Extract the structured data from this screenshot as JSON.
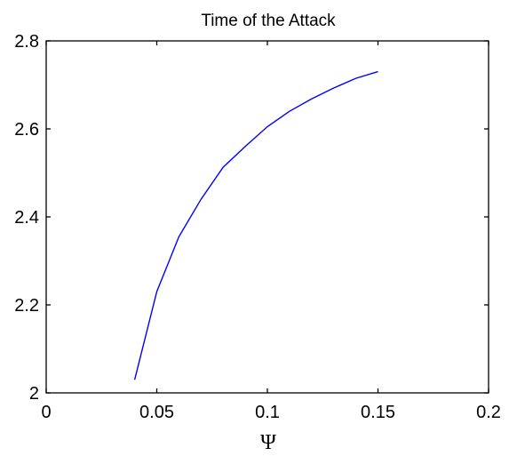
{
  "chart_data": {
    "type": "line",
    "title": "Time of the Attack",
    "xlabel": "Ψ",
    "ylabel": "",
    "xlim": [
      0,
      0.2
    ],
    "ylim": [
      2,
      2.8
    ],
    "xticks": [
      0,
      0.05,
      0.1,
      0.15,
      0.2
    ],
    "xtick_labels": [
      "0",
      "0.05",
      "0.1",
      "0.15",
      "0.2"
    ],
    "yticks": [
      2,
      2.2,
      2.4,
      2.6,
      2.8
    ],
    "ytick_labels": [
      "2",
      "2.2",
      "2.4",
      "2.6",
      "2.8"
    ],
    "grid": false,
    "series": [
      {
        "color": "#0000ff",
        "x": [
          0.04,
          0.05,
          0.06,
          0.07,
          0.08,
          0.09,
          0.1,
          0.11,
          0.12,
          0.13,
          0.14,
          0.15
        ],
        "y": [
          2.03,
          2.23,
          2.355,
          2.44,
          2.513,
          2.56,
          2.605,
          2.64,
          2.668,
          2.693,
          2.715,
          2.73
        ]
      }
    ]
  }
}
